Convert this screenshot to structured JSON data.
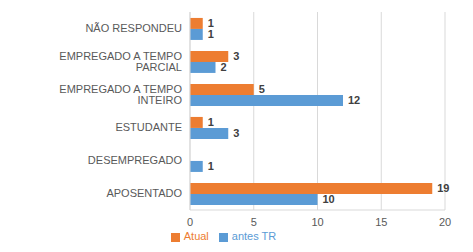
{
  "chart_data": {
    "type": "bar",
    "orientation": "horizontal",
    "categories": [
      "NÃO RESPONDEU",
      "EMPREGADO A TEMPO PARCIAL",
      "EMPREGADO A TEMPO INTEIRO",
      "ESTUDANTE",
      "DESEMPREGADO",
      "APOSENTADO"
    ],
    "series": [
      {
        "name": "Atual",
        "color": "#ed7d31",
        "values": [
          1,
          3,
          5,
          1,
          0,
          19
        ]
      },
      {
        "name": "antes TR",
        "color": "#5b9bd5",
        "values": [
          1,
          2,
          12,
          3,
          1,
          10
        ]
      }
    ],
    "xlim": [
      0,
      20
    ],
    "xticks": [
      0,
      5,
      10,
      15,
      20
    ],
    "grid": true,
    "data_labels": true,
    "legend": "bottom"
  }
}
